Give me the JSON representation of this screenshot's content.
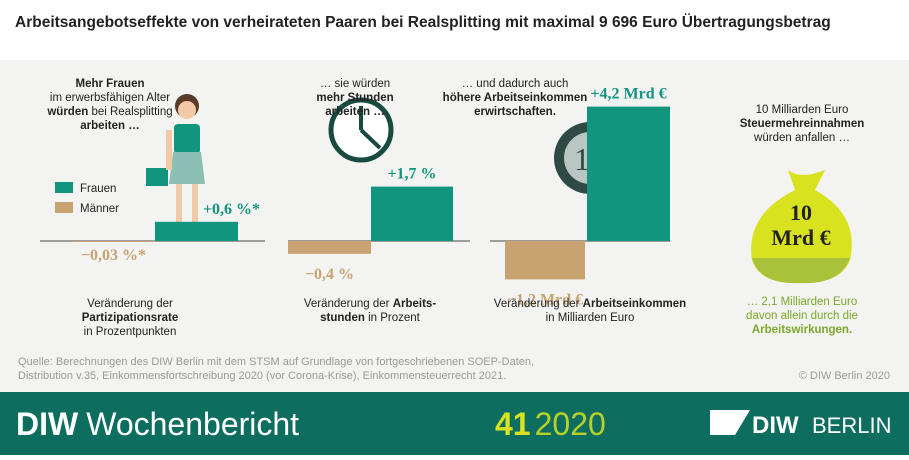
{
  "title": "Arbeitsangebotseffekte von verheirateten Paaren bei Realsplitting mit maximal 9 696 Euro Übertragungsbetrag",
  "chart_data": [
    {
      "type": "bar",
      "categories": [
        "Männer",
        "Frauen"
      ],
      "values": [
        -0.03,
        0.6
      ],
      "value_labels": [
        "−0,03 %*",
        "+0,6 %*"
      ],
      "colors": [
        "#c9a272",
        "#11957f"
      ],
      "ylim": [
        -1.5,
        4.5
      ],
      "intro": [
        [
          {
            "t": "Mehr Frauen",
            "b": true
          }
        ],
        [
          {
            "t": "im erwerbsfähigen Alter"
          }
        ],
        [
          {
            "t": "würden",
            "b": true
          },
          {
            "t": " bei Realsplitting"
          }
        ],
        [
          {
            "t": "arbeiten …",
            "b": true
          }
        ]
      ],
      "caption": [
        [
          {
            "t": "Veränderung der"
          }
        ],
        [
          {
            "t": "Partizipationsrate",
            "b": true
          }
        ],
        [
          {
            "t": "in Prozentpunkten"
          }
        ]
      ]
    },
    {
      "type": "bar",
      "values": [
        -0.4,
        1.7
      ],
      "value_labels": [
        "−0,4 %",
        "+1,7 %"
      ],
      "colors": [
        "#c9a272",
        "#11957f"
      ],
      "ylim": [
        -1.5,
        4.5
      ],
      "intro": [
        [
          {
            "t": "… sie würden"
          }
        ],
        [
          {
            "t": "mehr Stunden",
            "b": true
          }
        ],
        [
          {
            "t": "arbeiten …",
            "b": true
          }
        ]
      ],
      "caption": [
        [
          {
            "t": "Veränderung der "
          },
          {
            "t": "Arbeits-",
            "b": true
          }
        ],
        [
          {
            "t": "stunden",
            "b": true
          },
          {
            "t": " in Prozent"
          }
        ]
      ]
    },
    {
      "type": "bar",
      "values": [
        -1.2,
        4.2
      ],
      "value_labels": [
        "−1,2 Mrd €",
        "+4,2 Mrd €"
      ],
      "colors": [
        "#c9a272",
        "#11957f"
      ],
      "ylim": [
        -1.5,
        4.5
      ],
      "intro": [
        [
          {
            "t": "… und dadurch auch"
          }
        ],
        [
          {
            "t": "höhere Arbeitseinkommen",
            "b": true
          }
        ],
        [
          {
            "t": "erwirtschaften.",
            "b": true
          }
        ]
      ],
      "caption": [
        [
          {
            "t": "Veränderung der "
          },
          {
            "t": "Arbeitseinkommen",
            "b": true
          }
        ],
        [
          {
            "t": "in Milliarden Euro"
          }
        ]
      ]
    }
  ],
  "tax": {
    "intro": [
      [
        {
          "t": "10 Milliarden Euro"
        }
      ],
      [
        {
          "t": "Steuermehreinnahmen",
          "b": true
        }
      ],
      [
        {
          "t": "würden anfallen …"
        }
      ]
    ],
    "bag": [
      "10",
      "Mrd €"
    ],
    "note": [
      [
        {
          "t": "… 2,1 Milliarden Euro"
        }
      ],
      [
        {
          "t": "davon allein durch die"
        }
      ],
      [
        {
          "t": "Arbeitswirkungen.",
          "b": true
        }
      ]
    ]
  },
  "source": [
    "Quelle: Berechnungen des DIW Berlin mit dem STSM auf Grundlage von fortgeschriebenen SOEP-Daten,",
    "Distribution v.35, Einkommensfortschreibung 2020 (vor Corona-Krise), Einkommensteuerrecht 2021."
  ],
  "copyright": "© DIW Berlin 2020",
  "footer": {
    "brand": "DIW",
    "series": "Wochenbericht",
    "issue": "41",
    "year": "2020",
    "logo": [
      "DIW",
      "BERLIN"
    ]
  }
}
